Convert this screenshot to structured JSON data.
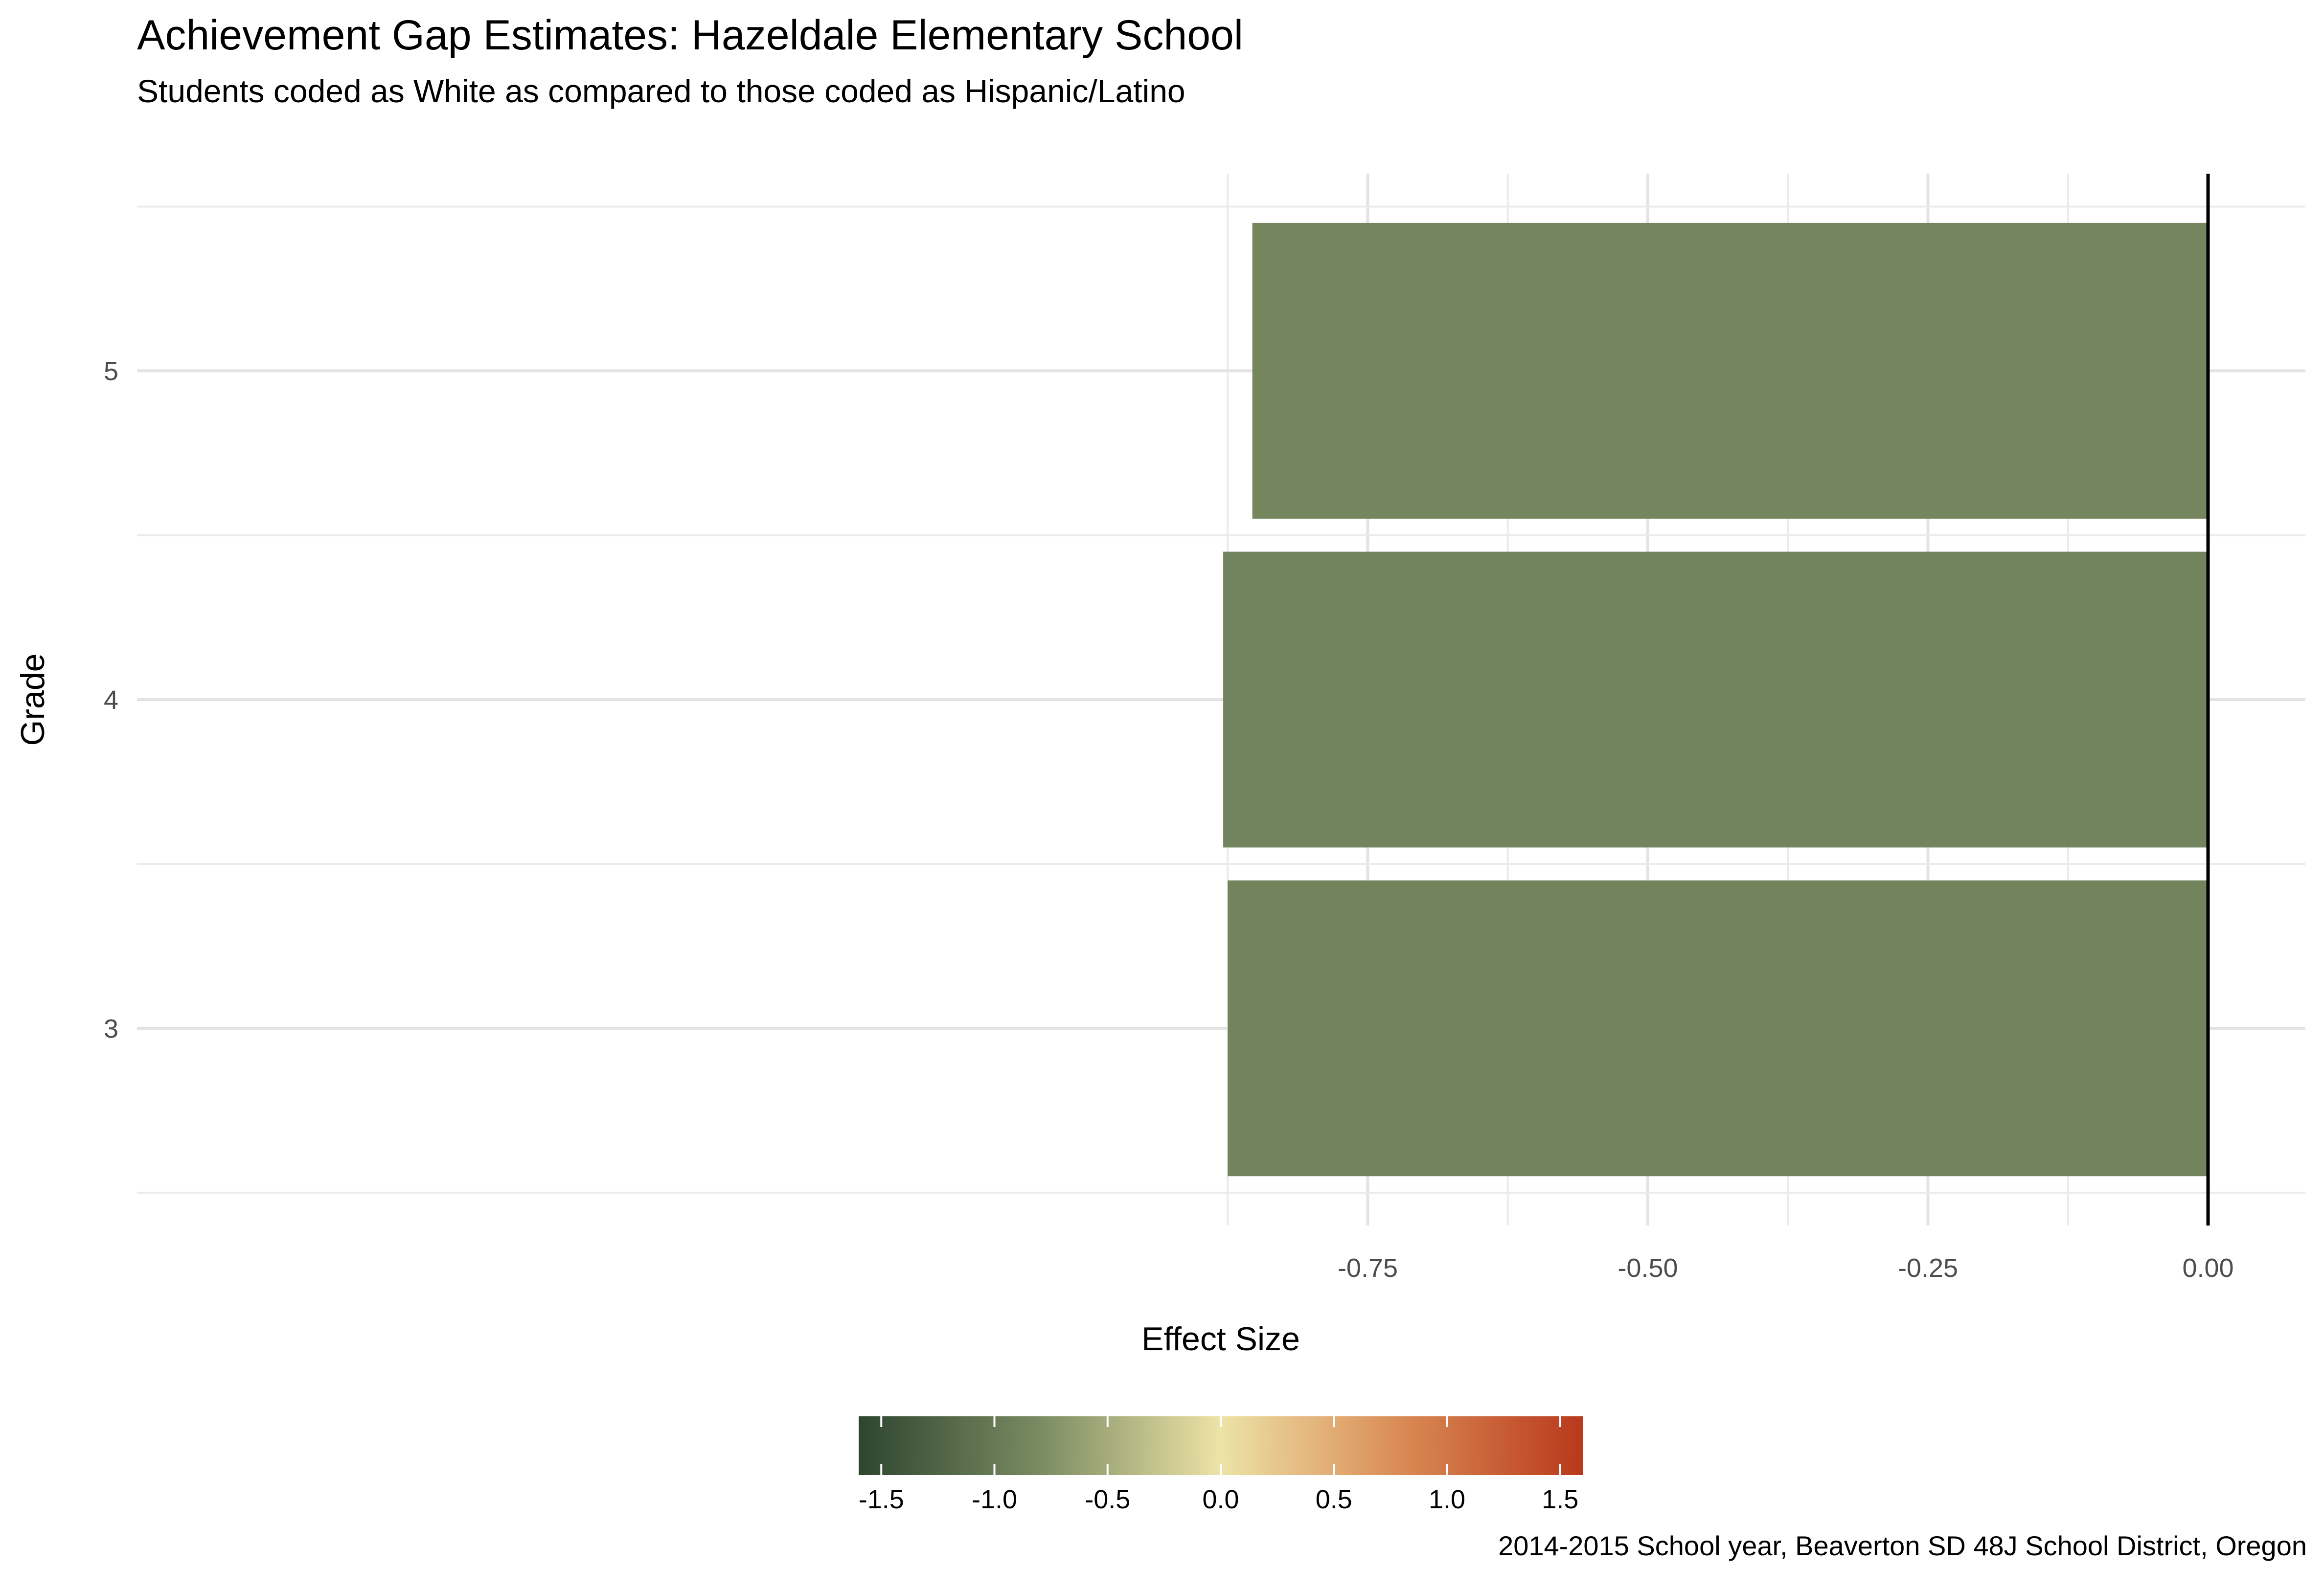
{
  "chart_data": {
    "type": "bar",
    "orientation": "horizontal",
    "title": "Achievement Gap Estimates: Hazeldale Elementary School",
    "subtitle": "Students coded as White as compared to those coded as Hispanic/Latino",
    "caption": "2014-2015 School year, Beaverton SD 48J School District, Oregon",
    "xlabel": "Effect Size",
    "ylabel": "Grade",
    "categories": [
      "3",
      "4",
      "5"
    ],
    "values": [
      -0.875,
      -0.879,
      -0.853
    ],
    "xlim": [
      -0.9,
      0.0
    ],
    "x_ticks": [
      -0.75,
      -0.5,
      -0.25,
      0.0
    ],
    "x_tick_labels": [
      "-0.75",
      "-0.50",
      "-0.25",
      "0.00"
    ],
    "reference_line": 0.0,
    "grid": true,
    "fill_scale": {
      "domain": [
        -1.6,
        1.6
      ],
      "stops": [
        {
          "value": -1.6,
          "color": "#2e4530"
        },
        {
          "value": -0.8,
          "color": "#7a8b62"
        },
        {
          "value": 0.0,
          "color": "#ede3a6"
        },
        {
          "value": 0.8,
          "color": "#d98a55"
        },
        {
          "value": 1.6,
          "color": "#b9391c"
        }
      ],
      "ticks": [
        -1.5,
        -1.0,
        -0.5,
        0.0,
        0.5,
        1.0,
        1.5
      ],
      "tick_labels": [
        "-1.5",
        "-1.0",
        "-0.5",
        "0.0",
        "0.5",
        "1.0",
        "1.5"
      ],
      "position": "bottom"
    }
  }
}
